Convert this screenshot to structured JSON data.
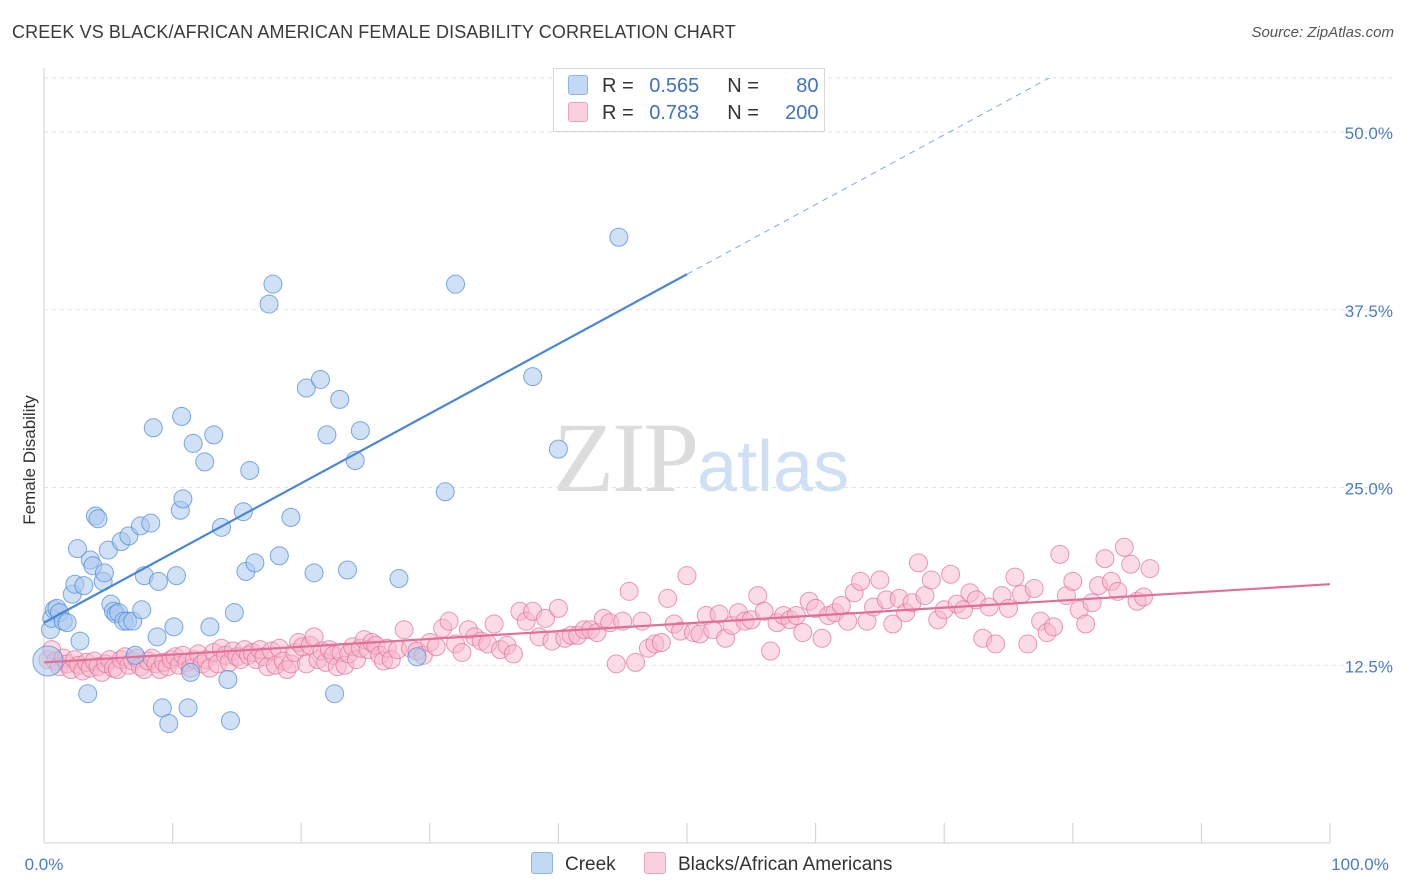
{
  "header": {
    "title": "CREEK VS BLACK/AFRICAN AMERICAN FEMALE DISABILITY CORRELATION CHART",
    "source": "Source: ZipAtlas.com"
  },
  "watermark": {
    "zip": "ZIP",
    "atlas": "atlas"
  },
  "legend": {
    "rows": [
      {
        "r_label": "R =",
        "r_value": "0.565",
        "n_label": "N =",
        "n_value": "80",
        "color": "#a9c8ef"
      },
      {
        "r_label": "R =",
        "r_value": "0.783",
        "n_label": "N =",
        "n_value": "200",
        "color": "#f7b8cc"
      }
    ]
  },
  "bottom_legend": {
    "items": [
      {
        "label": "Creek",
        "color": "#a9c8ef"
      },
      {
        "label": "Blacks/African Americans",
        "color": "#f7b8cc"
      }
    ]
  },
  "chart_data": {
    "type": "scatter",
    "title": "CREEK VS BLACK/AFRICAN AMERICAN FEMALE DISABILITY CORRELATION CHART",
    "ylabel": "Female Disability",
    "xlabel": "",
    "xlim": [
      0,
      100
    ],
    "ylim": [
      0,
      53.8
    ],
    "y_ticks": [
      12.5,
      25.0,
      37.5,
      50.0
    ],
    "y_tick_labels": [
      "12.5%",
      "25.0%",
      "37.5%",
      "50.0%"
    ],
    "x_tick_labels": [
      "0.0%",
      "100.0%"
    ],
    "grid": true,
    "legend_position": "top-center",
    "series": [
      {
        "name": "Creek",
        "color": "#4a86d8",
        "fill": "#a9c8ef",
        "r": 0.565,
        "n": 80,
        "trend": {
          "x0": 0,
          "y0": 15.5,
          "x1": 100,
          "y1": 64.5,
          "solid_until": 50
        },
        "points": [
          [
            0.3,
            12.8
          ],
          [
            0.5,
            15
          ],
          [
            0.6,
            15.8
          ],
          [
            0.8,
            16.4
          ],
          [
            1.0,
            16.5
          ],
          [
            1.2,
            16.2
          ],
          [
            1.5,
            15.6
          ],
          [
            1.8,
            15.5
          ],
          [
            2.2,
            17.5
          ],
          [
            2.4,
            18.2
          ],
          [
            2.6,
            20.7
          ],
          [
            2.8,
            14.2
          ],
          [
            3.1,
            18.1
          ],
          [
            3.4,
            10.5
          ],
          [
            3.6,
            19.9
          ],
          [
            3.8,
            19.5
          ],
          [
            4.0,
            23.0
          ],
          [
            4.2,
            22.8
          ],
          [
            4.6,
            18.4
          ],
          [
            4.7,
            19.0
          ],
          [
            5.0,
            20.6
          ],
          [
            5.2,
            16.8
          ],
          [
            5.4,
            16.3
          ],
          [
            5.6,
            16.1
          ],
          [
            5.8,
            16.2
          ],
          [
            6.0,
            21.2
          ],
          [
            6.2,
            15.6
          ],
          [
            6.5,
            15.6
          ],
          [
            6.6,
            21.6
          ],
          [
            6.9,
            15.6
          ],
          [
            7.1,
            13.2
          ],
          [
            7.5,
            22.3
          ],
          [
            7.6,
            16.4
          ],
          [
            7.8,
            18.8
          ],
          [
            8.3,
            22.5
          ],
          [
            8.5,
            29.2
          ],
          [
            8.8,
            14.5
          ],
          [
            8.9,
            18.4
          ],
          [
            9.2,
            9.5
          ],
          [
            9.7,
            8.4
          ],
          [
            10.1,
            15.2
          ],
          [
            10.3,
            18.8
          ],
          [
            10.6,
            23.4
          ],
          [
            10.7,
            30.0
          ],
          [
            10.8,
            24.2
          ],
          [
            11.2,
            9.5
          ],
          [
            11.4,
            12.0
          ],
          [
            11.6,
            28.1
          ],
          [
            12.5,
            26.8
          ],
          [
            12.9,
            15.2
          ],
          [
            13.2,
            28.7
          ],
          [
            13.8,
            22.2
          ],
          [
            14.3,
            11.5
          ],
          [
            14.5,
            8.6
          ],
          [
            14.8,
            16.2
          ],
          [
            15.5,
            23.3
          ],
          [
            15.7,
            19.1
          ],
          [
            16.0,
            26.2
          ],
          [
            16.4,
            19.7
          ],
          [
            17.5,
            37.9
          ],
          [
            17.8,
            39.3
          ],
          [
            18.3,
            20.2
          ],
          [
            19.2,
            22.9
          ],
          [
            20.4,
            32.0
          ],
          [
            21.0,
            19.0
          ],
          [
            21.5,
            32.6
          ],
          [
            22.0,
            28.7
          ],
          [
            22.6,
            10.5
          ],
          [
            23.0,
            31.2
          ],
          [
            23.6,
            19.2
          ],
          [
            24.2,
            26.9
          ],
          [
            24.6,
            29.0
          ],
          [
            27.6,
            18.6
          ],
          [
            29.0,
            13.1
          ],
          [
            31.2,
            24.7
          ],
          [
            32.0,
            39.3
          ],
          [
            38.0,
            32.8
          ],
          [
            40.0,
            27.7
          ],
          [
            44.7,
            42.6
          ]
        ]
      },
      {
        "name": "Blacks/African Americans",
        "color": "#e0709a",
        "fill": "#f7b8cc",
        "r": 0.783,
        "n": 200,
        "trend": {
          "x0": 0,
          "y0": 12.7,
          "x1": 100,
          "y1": 18.2,
          "solid_until": 100
        },
        "points": [
          [
            0.3,
            12.9
          ],
          [
            0.6,
            13.6
          ],
          [
            0.9,
            12.8
          ],
          [
            1.2,
            12.4
          ],
          [
            1.5,
            13.0
          ],
          [
            1.8,
            12.6
          ],
          [
            2.1,
            12.2
          ],
          [
            2.4,
            12.9
          ],
          [
            2.7,
            12.5
          ],
          [
            3.0,
            12.1
          ],
          [
            3.3,
            12.7
          ],
          [
            3.6,
            12.3
          ],
          [
            3.9,
            12.8
          ],
          [
            4.2,
            12.4
          ],
          [
            4.5,
            12.0
          ],
          [
            4.8,
            12.6
          ],
          [
            5.1,
            12.9
          ],
          [
            5.4,
            12.3
          ],
          [
            5.7,
            12.2
          ],
          [
            6.0,
            12.9
          ],
          [
            6.3,
            13.1
          ],
          [
            6.6,
            12.5
          ],
          [
            6.9,
            12.8
          ],
          [
            7.2,
            13.0
          ],
          [
            7.5,
            12.4
          ],
          [
            7.8,
            12.2
          ],
          [
            8.1,
            12.8
          ],
          [
            8.4,
            13.0
          ],
          [
            8.7,
            12.6
          ],
          [
            9.0,
            12.2
          ],
          [
            9.3,
            12.7
          ],
          [
            9.6,
            12.4
          ],
          [
            9.9,
            12.9
          ],
          [
            10.2,
            13.1
          ],
          [
            10.5,
            12.5
          ],
          [
            10.8,
            13.2
          ],
          [
            11.1,
            12.7
          ],
          [
            11.4,
            12.3
          ],
          [
            11.7,
            12.9
          ],
          [
            12.0,
            13.3
          ],
          [
            12.3,
            12.6
          ],
          [
            12.6,
            12.9
          ],
          [
            12.9,
            12.3
          ],
          [
            13.2,
            13.4
          ],
          [
            13.5,
            12.6
          ],
          [
            13.8,
            13.7
          ],
          [
            14.1,
            13.2
          ],
          [
            14.4,
            12.7
          ],
          [
            14.7,
            13.5
          ],
          [
            15.0,
            13.1
          ],
          [
            15.3,
            12.9
          ],
          [
            15.6,
            13.6
          ],
          [
            15.9,
            13.2
          ],
          [
            16.2,
            13.4
          ],
          [
            16.5,
            12.9
          ],
          [
            16.8,
            13.6
          ],
          [
            17.1,
            13.1
          ],
          [
            17.4,
            12.4
          ],
          [
            17.7,
            13.5
          ],
          [
            18.0,
            12.5
          ],
          [
            18.3,
            13.7
          ],
          [
            18.6,
            12.8
          ],
          [
            18.9,
            12.2
          ],
          [
            19.2,
            12.6
          ],
          [
            19.5,
            13.4
          ],
          [
            19.8,
            14.1
          ],
          [
            20.1,
            13.8
          ],
          [
            20.4,
            12.6
          ],
          [
            20.7,
            13.9
          ],
          [
            21.0,
            14.5
          ],
          [
            21.3,
            12.9
          ],
          [
            21.6,
            13.5
          ],
          [
            21.9,
            12.7
          ],
          [
            22.2,
            13.6
          ],
          [
            22.5,
            13.2
          ],
          [
            22.8,
            12.4
          ],
          [
            23.1,
            13.4
          ],
          [
            23.4,
            12.5
          ],
          [
            23.7,
            13.3
          ],
          [
            24.0,
            13.8
          ],
          [
            24.3,
            12.9
          ],
          [
            24.6,
            13.7
          ],
          [
            24.9,
            14.3
          ],
          [
            25.2,
            13.6
          ],
          [
            25.5,
            14.1
          ],
          [
            25.8,
            13.9
          ],
          [
            26.1,
            13.2
          ],
          [
            26.4,
            12.8
          ],
          [
            26.7,
            13.7
          ],
          [
            27.0,
            12.9
          ],
          [
            27.5,
            13.6
          ],
          [
            28.0,
            15.0
          ],
          [
            28.5,
            13.7
          ],
          [
            29.0,
            13.5
          ],
          [
            29.5,
            13.2
          ],
          [
            30.0,
            14.1
          ],
          [
            30.5,
            13.8
          ],
          [
            31.0,
            15.1
          ],
          [
            31.5,
            15.6
          ],
          [
            32.0,
            14.0
          ],
          [
            32.5,
            13.4
          ],
          [
            33.0,
            15.0
          ],
          [
            33.5,
            14.5
          ],
          [
            34.0,
            14.2
          ],
          [
            34.5,
            14.0
          ],
          [
            35.0,
            15.4
          ],
          [
            35.5,
            13.6
          ],
          [
            36.0,
            13.9
          ],
          [
            36.5,
            13.3
          ],
          [
            37.0,
            16.3
          ],
          [
            37.5,
            15.6
          ],
          [
            38.0,
            16.3
          ],
          [
            38.5,
            14.5
          ],
          [
            39.0,
            15.8
          ],
          [
            39.5,
            14.2
          ],
          [
            40.0,
            16.5
          ],
          [
            40.5,
            14.4
          ],
          [
            41.0,
            14.6
          ],
          [
            41.5,
            14.6
          ],
          [
            42.0,
            15.0
          ],
          [
            42.5,
            15.0
          ],
          [
            43.0,
            14.8
          ],
          [
            43.5,
            15.8
          ],
          [
            44.0,
            15.5
          ],
          [
            44.5,
            12.6
          ],
          [
            45.0,
            15.6
          ],
          [
            45.5,
            17.7
          ],
          [
            46.0,
            12.7
          ],
          [
            46.5,
            15.6
          ],
          [
            47.0,
            13.7
          ],
          [
            47.5,
            14.0
          ],
          [
            48.0,
            14.1
          ],
          [
            48.5,
            17.2
          ],
          [
            49.0,
            15.4
          ],
          [
            49.5,
            14.9
          ],
          [
            50.0,
            18.8
          ],
          [
            50.5,
            14.8
          ],
          [
            51.0,
            14.7
          ],
          [
            51.5,
            16.0
          ],
          [
            52.0,
            15.0
          ],
          [
            52.5,
            16.1
          ],
          [
            53.0,
            14.4
          ],
          [
            53.5,
            15.3
          ],
          [
            54.0,
            16.2
          ],
          [
            54.5,
            15.6
          ],
          [
            55.0,
            15.7
          ],
          [
            55.5,
            17.4
          ],
          [
            56.0,
            16.3
          ],
          [
            56.5,
            13.5
          ],
          [
            57.0,
            15.5
          ],
          [
            57.5,
            16.0
          ],
          [
            58.0,
            15.7
          ],
          [
            58.5,
            16.0
          ],
          [
            59.0,
            14.8
          ],
          [
            59.5,
            17.0
          ],
          [
            60.0,
            16.5
          ],
          [
            60.5,
            14.4
          ],
          [
            61.0,
            16.0
          ],
          [
            61.5,
            16.2
          ],
          [
            62.0,
            16.7
          ],
          [
            62.5,
            15.6
          ],
          [
            63.0,
            17.6
          ],
          [
            63.5,
            18.4
          ],
          [
            64.0,
            15.6
          ],
          [
            64.5,
            16.6
          ],
          [
            65.0,
            18.5
          ],
          [
            65.5,
            17.1
          ],
          [
            66.0,
            15.4
          ],
          [
            66.5,
            17.2
          ],
          [
            67.0,
            16.2
          ],
          [
            67.5,
            16.9
          ],
          [
            68.0,
            19.7
          ],
          [
            68.5,
            17.4
          ],
          [
            69.0,
            18.5
          ],
          [
            69.5,
            15.7
          ],
          [
            70.0,
            16.4
          ],
          [
            70.5,
            18.9
          ],
          [
            71.0,
            16.8
          ],
          [
            71.5,
            16.4
          ],
          [
            72.0,
            17.6
          ],
          [
            72.5,
            17.1
          ],
          [
            73.0,
            14.4
          ],
          [
            73.5,
            16.6
          ],
          [
            74.0,
            14.0
          ],
          [
            74.5,
            17.4
          ],
          [
            75.0,
            16.5
          ],
          [
            75.5,
            18.7
          ],
          [
            76.0,
            17.5
          ],
          [
            76.5,
            14.0
          ],
          [
            77.0,
            17.9
          ],
          [
            77.5,
            15.6
          ],
          [
            78.0,
            14.8
          ],
          [
            78.5,
            15.2
          ],
          [
            79.0,
            20.3
          ],
          [
            79.5,
            17.4
          ],
          [
            80.0,
            18.4
          ],
          [
            80.5,
            16.4
          ],
          [
            81.0,
            15.4
          ],
          [
            81.5,
            16.9
          ],
          [
            82.0,
            18.1
          ],
          [
            82.5,
            20.0
          ],
          [
            83.0,
            18.4
          ],
          [
            83.5,
            17.7
          ],
          [
            84.0,
            20.8
          ],
          [
            84.5,
            19.6
          ],
          [
            85.0,
            17.0
          ],
          [
            85.5,
            17.3
          ],
          [
            86.0,
            19.3
          ]
        ]
      }
    ]
  }
}
